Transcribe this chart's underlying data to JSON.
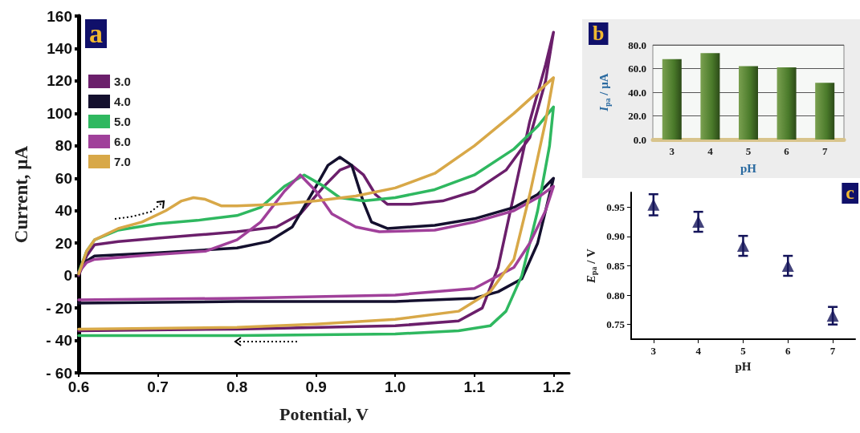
{
  "chart_data": [
    {
      "type": "line",
      "xlabel": "Potential, V",
      "ylabel": "Current, µA",
      "annotations": [
        "a"
      ],
      "legend": "top left",
      "marker": "none",
      "line_style": "solid",
      "grid": false,
      "xlim": [
        0.6,
        1.22
      ],
      "xticks": [
        {
          "value": 0.6,
          "label": "0.6"
        },
        {
          "value": 0.7,
          "label": "0.7"
        },
        {
          "value": 0.8,
          "label": "0.8"
        },
        {
          "value": 0.9,
          "label": "0.9"
        },
        {
          "value": 1.0,
          "label": "1.0"
        },
        {
          "value": 1.1,
          "label": "1.1"
        },
        {
          "value": 1.2,
          "label": "1.2"
        }
      ],
      "ylim": [
        -60,
        160
      ],
      "yticks": [
        {
          "value": -60,
          "label": "- 60"
        },
        {
          "value": -40,
          "label": "- 40"
        },
        {
          "value": -20,
          "label": "- 20"
        },
        0,
        20,
        40,
        60,
        80,
        100,
        120,
        140,
        160
      ],
      "series": [
        {
          "name": "3.0",
          "color": "#6b1f6b",
          "x": [
            0.6,
            0.61,
            0.62,
            0.65,
            0.7,
            0.75,
            0.8,
            0.85,
            0.88,
            0.91,
            0.93,
            0.945,
            0.96,
            0.975,
            0.99,
            1.02,
            1.06,
            1.1,
            1.14,
            1.17,
            1.19,
            1.2,
            1.19,
            1.17,
            1.15,
            1.13,
            1.11,
            1.08,
            1.0,
            0.8,
            0.6
          ],
          "values": [
            0,
            12,
            19,
            21,
            23,
            25,
            27,
            30,
            38,
            55,
            65,
            68,
            62,
            50,
            44,
            44,
            46,
            52,
            65,
            85,
            120,
            150,
            130,
            95,
            50,
            5,
            -20,
            -28,
            -31,
            -33,
            -34
          ]
        },
        {
          "name": "4.0",
          "color": "#14102e",
          "x": [
            0.6,
            0.61,
            0.62,
            0.7,
            0.8,
            0.84,
            0.87,
            0.9,
            0.915,
            0.93,
            0.945,
            0.96,
            0.97,
            0.99,
            1.05,
            1.1,
            1.15,
            1.18,
            1.2,
            1.195,
            1.18,
            1.16,
            1.13,
            1.1,
            1.0,
            0.8,
            0.6
          ],
          "values": [
            2,
            9,
            12,
            14,
            17,
            21,
            30,
            55,
            68,
            73,
            68,
            45,
            33,
            29,
            31,
            35,
            42,
            50,
            60,
            50,
            20,
            -2,
            -10,
            -14,
            -16,
            -16,
            -17
          ]
        },
        {
          "name": "5.0",
          "color": "#2fb860",
          "x": [
            0.6,
            0.61,
            0.62,
            0.65,
            0.7,
            0.75,
            0.8,
            0.83,
            0.86,
            0.885,
            0.91,
            0.93,
            0.96,
            1.0,
            1.05,
            1.1,
            1.15,
            1.18,
            1.2,
            1.195,
            1.18,
            1.16,
            1.14,
            1.12,
            1.08,
            1.0,
            0.8,
            0.6
          ],
          "values": [
            2,
            15,
            22,
            28,
            32,
            34,
            37,
            42,
            55,
            62,
            55,
            48,
            46,
            48,
            53,
            62,
            78,
            92,
            104,
            80,
            40,
            0,
            -22,
            -31,
            -34,
            -36,
            -37,
            -37
          ]
        },
        {
          "name": "6.0",
          "color": "#a0409a",
          "x": [
            0.6,
            0.61,
            0.62,
            0.7,
            0.76,
            0.8,
            0.83,
            0.86,
            0.88,
            0.9,
            0.92,
            0.95,
            0.98,
            1.05,
            1.1,
            1.15,
            1.18,
            1.2,
            1.19,
            1.17,
            1.15,
            1.1,
            1.0,
            0.8,
            0.6
          ],
          "values": [
            2,
            8,
            10,
            13,
            15,
            22,
            33,
            52,
            62,
            52,
            38,
            30,
            27,
            28,
            33,
            40,
            48,
            55,
            40,
            20,
            5,
            -8,
            -12,
            -14,
            -15
          ]
        },
        {
          "name": "7.0",
          "color": "#d8a848",
          "x": [
            0.6,
            0.61,
            0.62,
            0.65,
            0.68,
            0.71,
            0.73,
            0.745,
            0.76,
            0.78,
            0.8,
            0.85,
            0.9,
            0.95,
            1.0,
            1.05,
            1.1,
            1.15,
            1.2,
            1.19,
            1.17,
            1.15,
            1.12,
            1.08,
            1.0,
            0.9,
            0.8,
            0.6
          ],
          "values": [
            1,
            15,
            22,
            29,
            33,
            40,
            46,
            48,
            47,
            43,
            43,
            44,
            46,
            49,
            54,
            63,
            80,
            100,
            122,
            95,
            50,
            10,
            -10,
            -22,
            -27,
            -30,
            -32,
            -33
          ]
        }
      ]
    },
    {
      "type": "bar",
      "xlabel": "pH",
      "ylabel": "I$_{pa}$ / µA",
      "annotations": [
        "b"
      ],
      "grid": "y",
      "categories": [
        "3",
        "4",
        "5",
        "6",
        "7"
      ],
      "values": [
        68,
        73,
        62,
        61,
        48
      ],
      "color": "#4a7a2a",
      "ylim": [
        0,
        80
      ],
      "yticks": [
        {
          "value": 0,
          "label": "0.0"
        },
        {
          "value": 20,
          "label": "20.0"
        },
        {
          "value": 40,
          "label": "40.0"
        },
        {
          "value": 60,
          "label": "60.0"
        },
        {
          "value": 80,
          "label": "80.0"
        }
      ]
    },
    {
      "type": "scatter",
      "xlabel": "pH",
      "ylabel": "E$_{pa}$ / V",
      "annotations": [
        "c"
      ],
      "marker": "triangle",
      "grid": false,
      "color": "#14145a",
      "x": [
        3,
        4,
        5,
        6,
        7
      ],
      "values": [
        0.954,
        0.925,
        0.884,
        0.85,
        0.765
      ],
      "errors": [
        0.018,
        0.017,
        0.017,
        0.017,
        0.015
      ],
      "xlim": [
        2.5,
        7.5
      ],
      "xticks": [
        3,
        4,
        5,
        6,
        7
      ],
      "ylim": [
        0.725,
        0.975
      ],
      "yticks": [
        {
          "value": 0.75,
          "label": "0.75"
        },
        {
          "value": 0.8,
          "label": "0.80"
        },
        {
          "value": 0.85,
          "label": "0.85"
        },
        {
          "value": 0.9,
          "label": "0.90"
        },
        {
          "value": 0.95,
          "label": "0.95"
        }
      ]
    }
  ]
}
